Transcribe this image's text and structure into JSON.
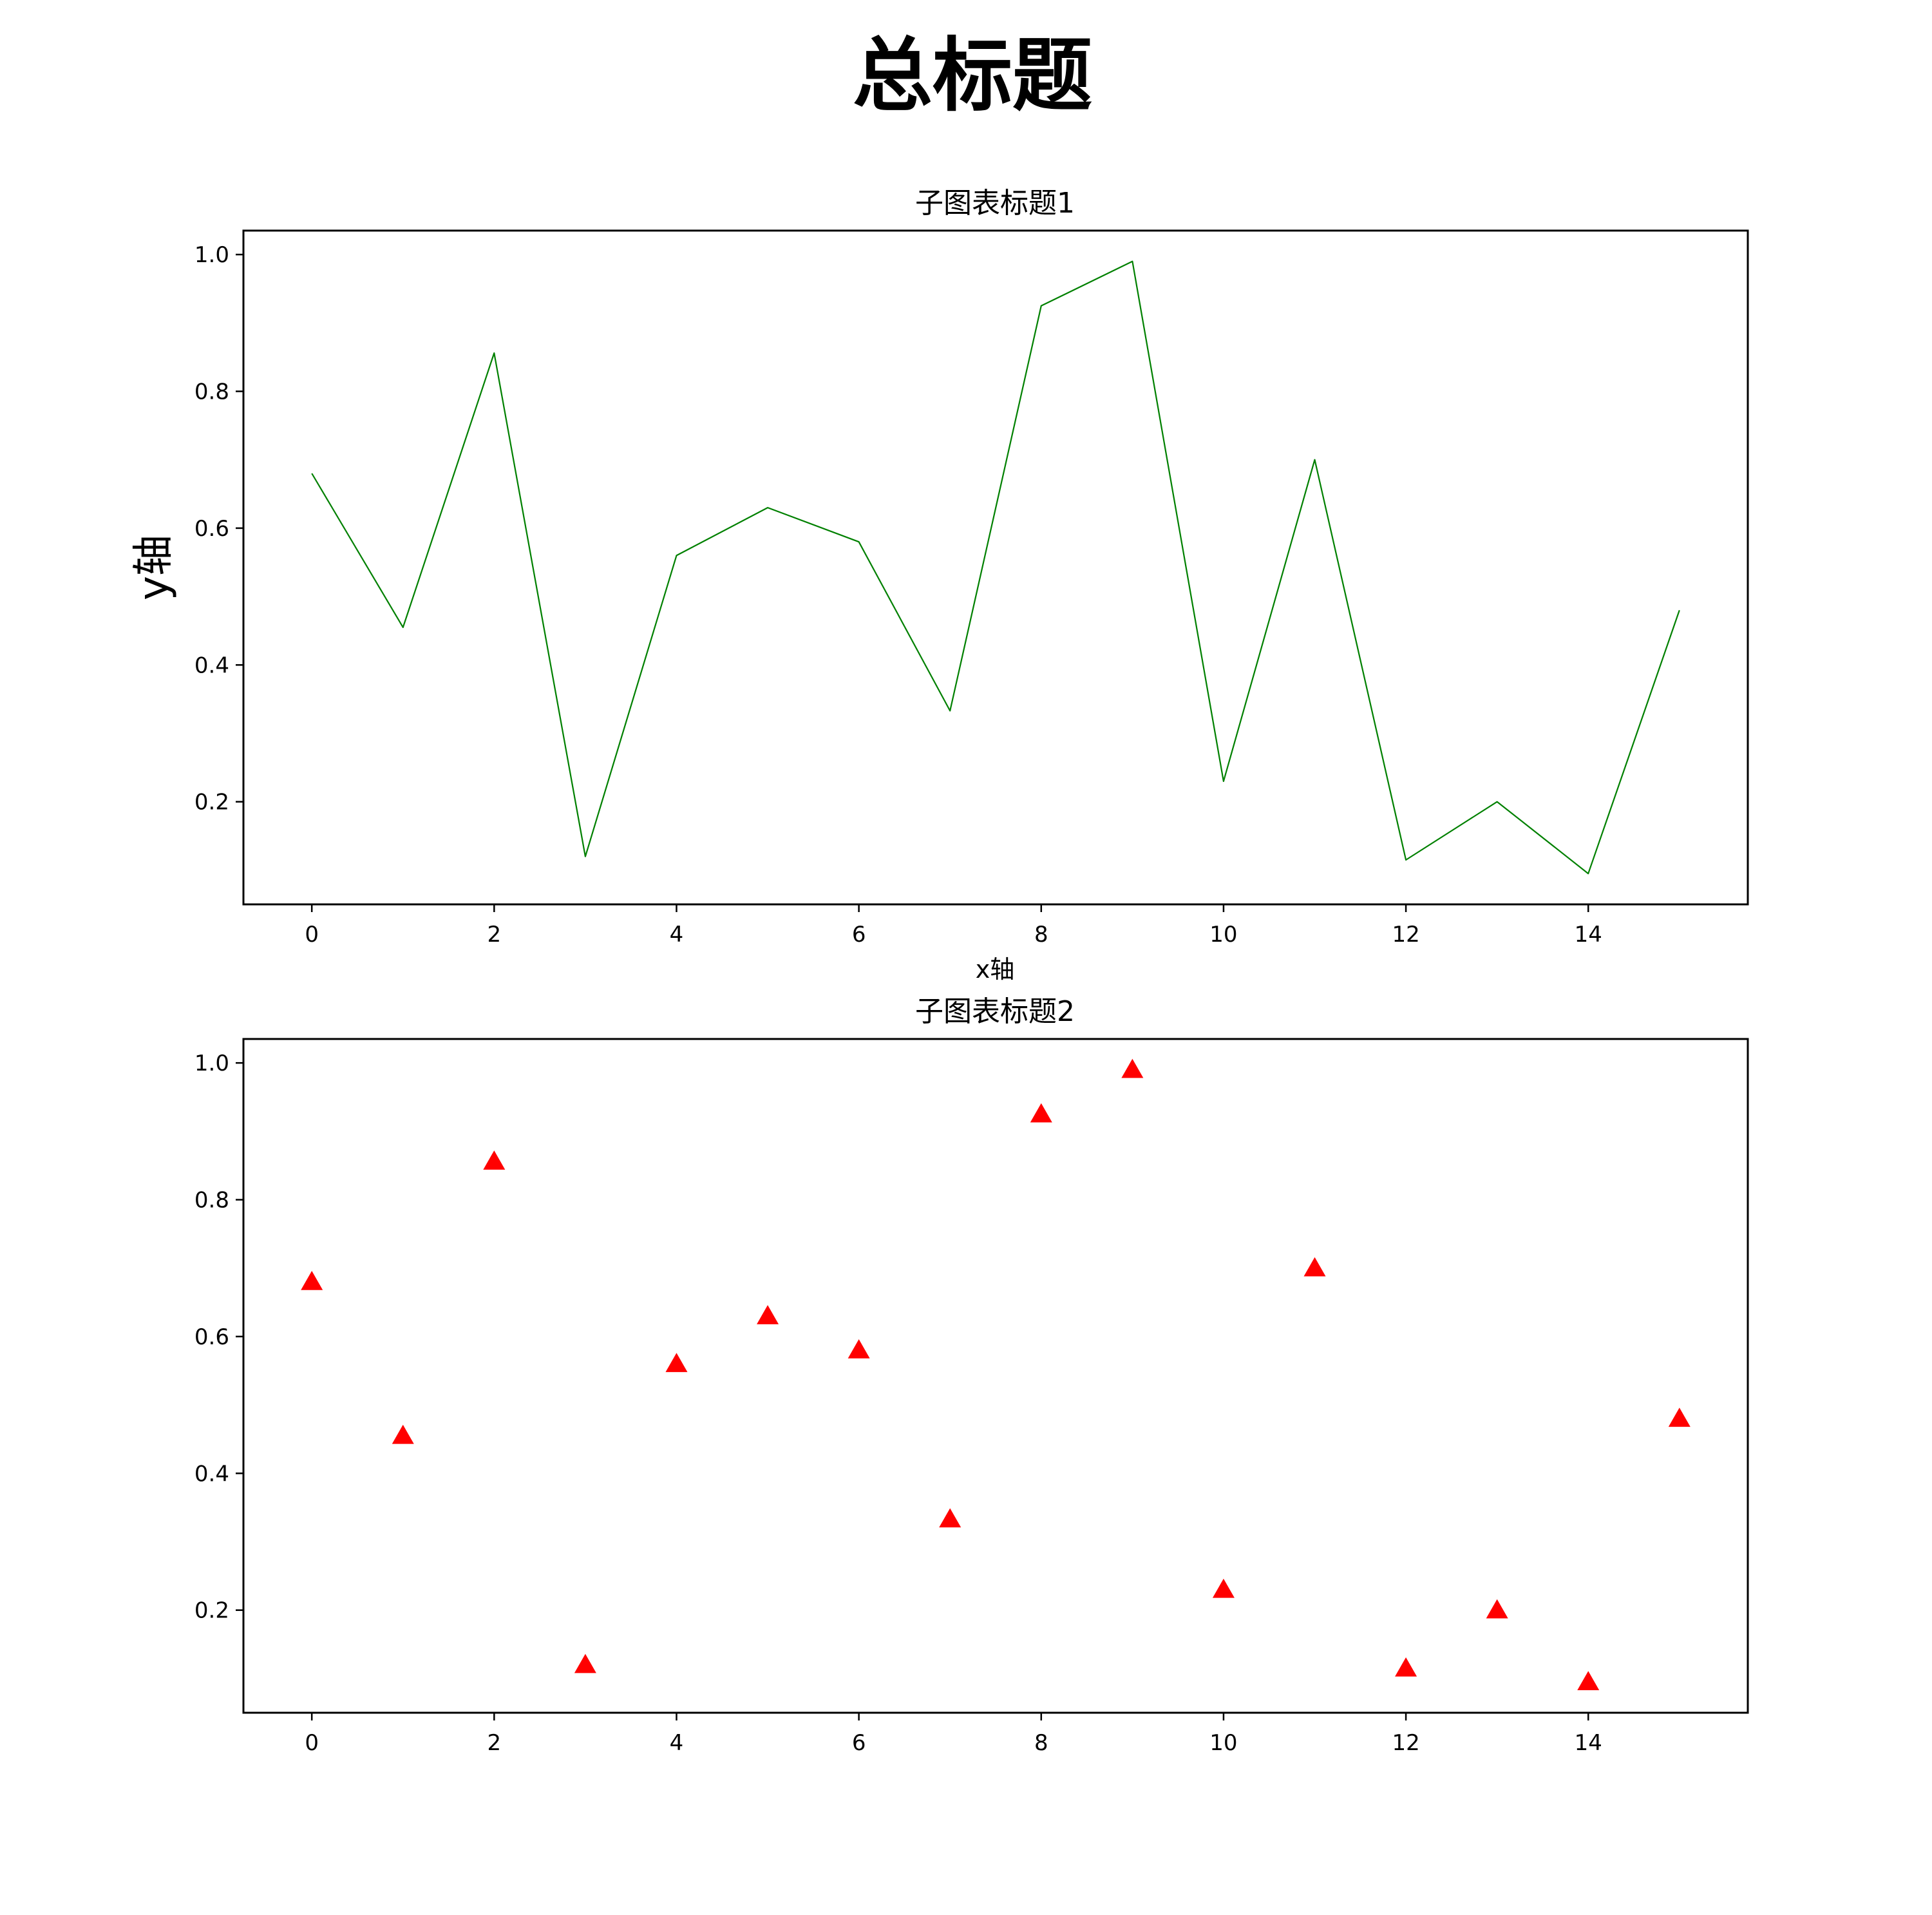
{
  "figure": {
    "suptitle": "总标题"
  },
  "chart_data": [
    {
      "type": "line",
      "title": "子图表标题1",
      "xlabel": "x轴",
      "ylabel": "y轴",
      "line_color": "#008000",
      "x": [
        0,
        1,
        2,
        3,
        4,
        5,
        6,
        7,
        8,
        9,
        10,
        11,
        12,
        13,
        14,
        15
      ],
      "series": [
        {
          "values": [
            0.68,
            0.455,
            0.856,
            0.12,
            0.56,
            0.63,
            0.58,
            0.333,
            0.925,
            0.99,
            0.23,
            0.7,
            0.115,
            0.2,
            0.095,
            0.48
          ]
        }
      ],
      "xlim": [
        -0.75,
        15.75
      ],
      "ylim": [
        0.05,
        1.035
      ],
      "xticks": [
        0,
        2,
        4,
        6,
        8,
        10,
        12,
        14
      ],
      "yticks": [
        0.2,
        0.4,
        0.6,
        0.8,
        1.0
      ],
      "grid": false
    },
    {
      "type": "scatter",
      "title": "子图表标题2",
      "xlabel": "",
      "ylabel": "",
      "marker": "triangle-up",
      "marker_color": "#ff0000",
      "x": [
        0,
        1,
        2,
        3,
        4,
        5,
        6,
        7,
        8,
        9,
        10,
        11,
        12,
        13,
        14,
        15
      ],
      "series": [
        {
          "values": [
            0.68,
            0.455,
            0.856,
            0.12,
            0.56,
            0.63,
            0.58,
            0.333,
            0.925,
            0.99,
            0.23,
            0.7,
            0.115,
            0.2,
            0.095,
            0.48
          ]
        }
      ],
      "xlim": [
        -0.75,
        15.75
      ],
      "ylim": [
        0.05,
        1.035
      ],
      "xticks": [
        0,
        2,
        4,
        6,
        8,
        10,
        12,
        14
      ],
      "yticks": [
        0.2,
        0.4,
        0.6,
        0.8,
        1.0
      ],
      "grid": false
    }
  ]
}
